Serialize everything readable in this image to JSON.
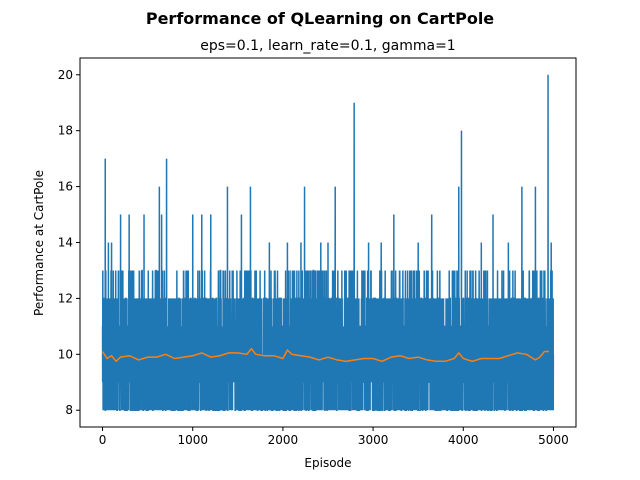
{
  "figure": {
    "suptitle": "Performance of QLearning on CartPole",
    "title": "eps=0.1, learn_rate=0.1, gamma=1"
  },
  "chart_data": {
    "type": "line",
    "title": "eps=0.1, learn_rate=0.1, gamma=1",
    "xlabel": "Episode",
    "ylabel": "Performance at CartPole",
    "xlim": [
      -250,
      5250
    ],
    "ylim": [
      7.4,
      20.6
    ],
    "xticks": [
      0,
      1000,
      2000,
      3000,
      4000,
      5000
    ],
    "yticks": [
      8,
      10,
      12,
      14,
      16,
      18,
      20
    ],
    "grid": false,
    "legend": "none",
    "series": [
      {
        "color": "#1f77b4",
        "episodes": 5000,
        "baseline_min": 8,
        "baseline_max": 13,
        "peaks": [
          {
            "x": 30,
            "y": 17
          },
          {
            "x": 65,
            "y": 14
          },
          {
            "x": 100,
            "y": 14
          },
          {
            "x": 200,
            "y": 15
          },
          {
            "x": 295,
            "y": 15
          },
          {
            "x": 460,
            "y": 15
          },
          {
            "x": 630,
            "y": 16
          },
          {
            "x": 655,
            "y": 15
          },
          {
            "x": 710,
            "y": 17
          },
          {
            "x": 1000,
            "y": 15
          },
          {
            "x": 1100,
            "y": 15
          },
          {
            "x": 1200,
            "y": 15
          },
          {
            "x": 1385,
            "y": 16
          },
          {
            "x": 1540,
            "y": 15
          },
          {
            "x": 1640,
            "y": 16
          },
          {
            "x": 1850,
            "y": 14
          },
          {
            "x": 2050,
            "y": 14
          },
          {
            "x": 2200,
            "y": 14
          },
          {
            "x": 2240,
            "y": 16
          },
          {
            "x": 2420,
            "y": 14
          },
          {
            "x": 2500,
            "y": 14
          },
          {
            "x": 2580,
            "y": 16
          },
          {
            "x": 2790,
            "y": 19
          },
          {
            "x": 2950,
            "y": 14
          },
          {
            "x": 3090,
            "y": 14
          },
          {
            "x": 3230,
            "y": 15
          },
          {
            "x": 3500,
            "y": 14
          },
          {
            "x": 3650,
            "y": 15
          },
          {
            "x": 3950,
            "y": 16
          },
          {
            "x": 3980,
            "y": 18
          },
          {
            "x": 4200,
            "y": 14
          },
          {
            "x": 4330,
            "y": 15
          },
          {
            "x": 4500,
            "y": 14
          },
          {
            "x": 4650,
            "y": 16
          },
          {
            "x": 4800,
            "y": 16
          },
          {
            "x": 4940,
            "y": 20
          },
          {
            "x": 4975,
            "y": 14
          }
        ]
      },
      {
        "color": "#ff7f0e",
        "kind": "moving-average",
        "points": [
          [
            0,
            10.1
          ],
          [
            50,
            9.85
          ],
          [
            100,
            9.95
          ],
          [
            150,
            9.75
          ],
          [
            200,
            9.9
          ],
          [
            300,
            9.95
          ],
          [
            400,
            9.8
          ],
          [
            500,
            9.9
          ],
          [
            600,
            9.9
          ],
          [
            700,
            10.0
          ],
          [
            800,
            9.85
          ],
          [
            900,
            9.9
          ],
          [
            1000,
            9.95
          ],
          [
            1100,
            10.05
          ],
          [
            1200,
            9.9
          ],
          [
            1300,
            9.95
          ],
          [
            1400,
            10.05
          ],
          [
            1500,
            10.05
          ],
          [
            1600,
            10.0
          ],
          [
            1650,
            10.2
          ],
          [
            1700,
            10.0
          ],
          [
            1800,
            9.95
          ],
          [
            1900,
            9.95
          ],
          [
            2000,
            9.85
          ],
          [
            2050,
            10.15
          ],
          [
            2100,
            10.0
          ],
          [
            2200,
            9.95
          ],
          [
            2300,
            9.9
          ],
          [
            2400,
            9.8
          ],
          [
            2500,
            9.9
          ],
          [
            2600,
            9.8
          ],
          [
            2700,
            9.75
          ],
          [
            2800,
            9.8
          ],
          [
            2900,
            9.85
          ],
          [
            3000,
            9.85
          ],
          [
            3100,
            9.75
          ],
          [
            3200,
            9.9
          ],
          [
            3300,
            9.95
          ],
          [
            3400,
            9.85
          ],
          [
            3500,
            9.9
          ],
          [
            3600,
            9.8
          ],
          [
            3700,
            9.75
          ],
          [
            3800,
            9.75
          ],
          [
            3900,
            9.85
          ],
          [
            3950,
            10.05
          ],
          [
            4000,
            9.85
          ],
          [
            4100,
            9.75
          ],
          [
            4200,
            9.85
          ],
          [
            4300,
            9.85
          ],
          [
            4400,
            9.85
          ],
          [
            4500,
            9.95
          ],
          [
            4600,
            10.05
          ],
          [
            4700,
            10.0
          ],
          [
            4800,
            9.8
          ],
          [
            4850,
            9.9
          ],
          [
            4900,
            10.1
          ],
          [
            4950,
            10.1
          ]
        ]
      }
    ]
  }
}
